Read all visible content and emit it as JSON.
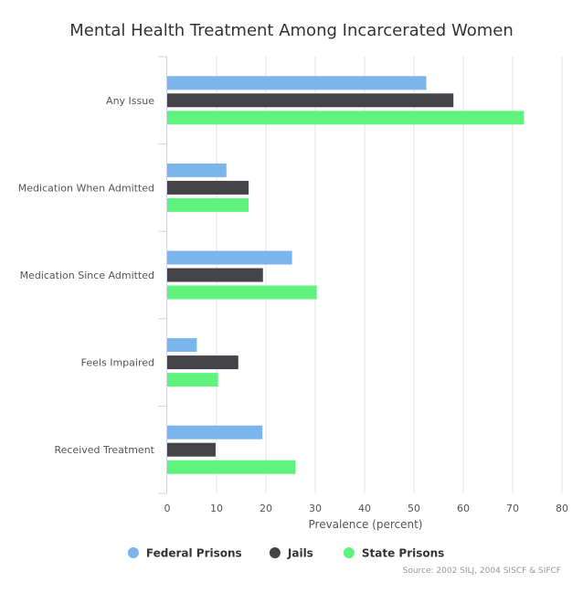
{
  "chart_data": {
    "type": "bar",
    "orientation": "horizontal",
    "title": "Mental Health Treatment Among Incarcerated Women",
    "categories": [
      "Any Issue",
      "Medication When Admitted",
      "Medication Since Admitted",
      "Feels Impaired",
      "Received Treatment"
    ],
    "series": [
      {
        "name": "Federal Prisons",
        "color": "#7cb5ec",
        "values": [
          52.5,
          12,
          25.3,
          6,
          19.3
        ]
      },
      {
        "name": "Jails",
        "color": "#434348",
        "values": [
          58,
          16.5,
          19.4,
          14.4,
          9.8
        ]
      },
      {
        "name": "State Prisons",
        "color": "#5ff27c",
        "values": [
          72.3,
          16.5,
          30.3,
          10.3,
          26
        ]
      }
    ],
    "xlabel": "Prevalence (percent)",
    "ylabel": "",
    "xlim": [
      0,
      80
    ],
    "xticks": [
      0,
      10,
      20,
      30,
      40,
      50,
      60,
      70,
      80
    ],
    "grid": true,
    "legend_position": "bottom-center",
    "source": "Source: 2002 SILJ, 2004 SISCF & SIFCF"
  }
}
